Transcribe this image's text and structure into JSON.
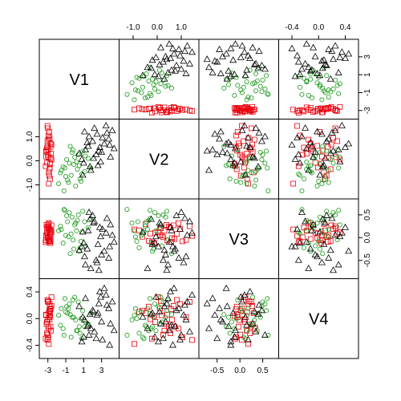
{
  "chart_data": {
    "type": "scatter",
    "title": "",
    "variables": [
      "V1",
      "V2",
      "V3",
      "V4"
    ],
    "ranges": {
      "V1": [
        -3.6,
        4.6
      ],
      "V2": [
        -1.45,
        1.6
      ],
      "V3": [
        -0.83,
        0.78
      ],
      "V4": [
        -0.55,
        0.55
      ]
    },
    "ticks": {
      "V1": [
        -3,
        -1,
        1,
        3
      ],
      "V2": [
        -1.0,
        0.0,
        1.0
      ],
      "V3": [
        -0.5,
        0.0,
        0.5
      ],
      "V4": [
        -0.4,
        0.0,
        0.4
      ]
    },
    "tick_labels": {
      "V1": [
        "-3",
        "-1",
        "1",
        "3"
      ],
      "V2": [
        "-1.0",
        "0.0",
        "1.0"
      ],
      "V3": [
        "-0.5",
        "0.0",
        "0.5"
      ],
      "V4": [
        "-0.4",
        "0.0",
        "0.4"
      ]
    },
    "groups": [
      {
        "symbol": "square",
        "color": "#e8000b",
        "points": [
          [
            -2.9,
            -0.95,
            0.18,
            -0.38
          ],
          [
            -3.0,
            1.35,
            0.25,
            0.25
          ],
          [
            -2.7,
            0.72,
            -0.03,
            -0.12
          ],
          [
            -3.2,
            0.18,
            0.05,
            0.05
          ],
          [
            -2.8,
            -0.35,
            -0.07,
            0.18
          ],
          [
            -3.1,
            0.55,
            0.22,
            -0.22
          ],
          [
            -2.6,
            0.05,
            0.12,
            0.32
          ],
          [
            -2.95,
            1.05,
            -0.08,
            -0.28
          ],
          [
            -2.85,
            -0.62,
            0.02,
            0.12
          ],
          [
            -3.15,
            0.38,
            0.28,
            -0.08
          ],
          [
            -2.75,
            -0.12,
            -0.12,
            0.04
          ],
          [
            -3.05,
            0.82,
            0.08,
            0.28
          ],
          [
            -2.65,
            0.3,
            0.15,
            -0.18
          ],
          [
            -2.9,
            -0.48,
            0.3,
            0.08
          ],
          [
            -3.0,
            0.62,
            -0.01,
            -0.02
          ],
          [
            -2.8,
            0.95,
            0.19,
            0.22
          ],
          [
            -3.25,
            -0.22,
            -0.1,
            -0.3
          ],
          [
            -2.7,
            0.12,
            0.05,
            0.15
          ],
          [
            -2.95,
            0.48,
            0.24,
            -0.12
          ],
          [
            -2.85,
            1.2,
            -0.05,
            0.02
          ],
          [
            -3.1,
            -0.08,
            0.11,
            -0.05
          ],
          [
            -2.6,
            0.68,
            0.27,
            0.19
          ],
          [
            -3.0,
            0.25,
            0.01,
            -0.24
          ],
          [
            -2.75,
            -0.75,
            0.16,
            0.1
          ],
          [
            -2.9,
            0.88,
            0.32,
            -0.15
          ],
          [
            -3.2,
            0.42,
            -0.06,
            0.06
          ],
          [
            -2.8,
            -0.28,
            0.09,
            -0.01
          ],
          [
            -2.95,
            0.15,
            0.21,
            0.26
          ],
          [
            -3.05,
            1.45,
            0.04,
            -0.32
          ],
          [
            -2.7,
            0.58,
            -0.09,
            0.14
          ]
        ]
      },
      {
        "symbol": "circle",
        "color": "#1a9a1a",
        "points": [
          [
            -1.5,
            -0.4,
            0.18,
            0.15
          ],
          [
            -0.8,
            -0.8,
            0.35,
            0.08
          ],
          [
            -1.2,
            -1.25,
            0.62,
            -0.25
          ],
          [
            0.0,
            0.15,
            0.28,
            0.32
          ],
          [
            0.5,
            -0.2,
            -0.3,
            -0.12
          ],
          [
            -0.3,
            0.35,
            0.45,
            0.02
          ],
          [
            0.8,
            -0.55,
            0.12,
            -0.3
          ],
          [
            -0.6,
            -0.1,
            0.55,
            0.22
          ],
          [
            1.2,
            0.2,
            -0.18,
            -0.05
          ],
          [
            -1.0,
            -0.65,
            0.05,
            0.1
          ],
          [
            0.3,
            -0.35,
            0.38,
            -0.18
          ],
          [
            -0.2,
            0.45,
            -0.05,
            0.28
          ],
          [
            1.5,
            0.1,
            0.22,
            -0.08
          ],
          [
            -1.8,
            -0.95,
            0.15,
            0.05
          ],
          [
            0.6,
            -0.75,
            -0.22,
            -0.22
          ],
          [
            -0.9,
            0.05,
            0.48,
            0.18
          ],
          [
            0.1,
            -1.05,
            0.32,
            -0.02
          ],
          [
            -1.3,
            -0.25,
            -0.12,
            -0.15
          ],
          [
            0.9,
            0.4,
            0.58,
            0.12
          ],
          [
            -0.4,
            -0.6,
            0.08,
            -0.28
          ],
          [
            1.8,
            -0.3,
            0.42,
            0.08
          ],
          [
            -0.1,
            -0.15,
            -0.25,
            0.02
          ],
          [
            -1.6,
            -0.5,
            0.25,
            -0.1
          ],
          [
            0.4,
            0.25,
            0.5,
            0.25
          ],
          [
            -0.7,
            -0.9,
            0.02,
            0.15
          ],
          [
            1.1,
            -0.45,
            0.35,
            -0.12
          ],
          [
            -0.5,
            0.6,
            -0.35,
            0.06
          ],
          [
            0.2,
            -0.05,
            0.15,
            -0.18
          ],
          [
            -1.1,
            -0.3,
            0.6,
            0.3
          ],
          [
            0.7,
            -0.85,
            -0.08,
            0.0
          ]
        ]
      },
      {
        "symbol": "triangle",
        "color": "#000000",
        "points": [
          [
            0.5,
            0.3,
            -0.28,
            0.18
          ],
          [
            1.5,
            0.6,
            0.15,
            -0.1
          ],
          [
            2.5,
            1.1,
            -0.55,
            0.05
          ],
          [
            3.5,
            1.45,
            0.1,
            0.35
          ],
          [
            1.0,
            -0.1,
            -0.12,
            -0.28
          ],
          [
            2.0,
            0.8,
            0.48,
            0.12
          ],
          [
            3.0,
            0.35,
            -0.38,
            -0.05
          ],
          [
            4.2,
            1.25,
            0.05,
            0.25
          ],
          [
            1.8,
            -0.4,
            -0.68,
            -0.15
          ],
          [
            2.8,
            0.55,
            0.22,
            0.4
          ],
          [
            0.8,
            0.05,
            -0.2,
            -0.35
          ],
          [
            3.8,
            0.9,
            -0.45,
            0.15
          ],
          [
            2.2,
            1.35,
            0.35,
            -0.2
          ],
          [
            1.2,
            0.45,
            -0.6,
            0.3
          ],
          [
            4.0,
            0.15,
            0.28,
            -0.08
          ],
          [
            2.6,
            -0.2,
            -0.15,
            0.08
          ],
          [
            1.6,
            1.0,
            0.55,
            -0.25
          ],
          [
            3.3,
            0.7,
            -0.3,
            0.45
          ],
          [
            0.9,
            -0.6,
            0.12,
            0.02
          ],
          [
            2.4,
            0.25,
            -0.5,
            -0.3
          ],
          [
            3.6,
            1.15,
            0.42,
            0.2
          ],
          [
            1.4,
            0.75,
            -0.25,
            -0.12
          ],
          [
            2.9,
            -0.05,
            0.02,
            0.32
          ],
          [
            4.4,
            0.5,
            -0.1,
            -0.18
          ],
          [
            2.1,
            0.1,
            0.32,
            0.1
          ],
          [
            1.1,
            1.2,
            -0.42,
            -0.02
          ],
          [
            3.1,
            0.95,
            0.18,
            -0.32
          ],
          [
            2.7,
            0.4,
            -0.72,
            0.22
          ],
          [
            1.7,
            -0.25,
            0.4,
            0.06
          ],
          [
            3.9,
            0.65,
            -0.2,
            -0.4
          ]
        ]
      }
    ]
  }
}
